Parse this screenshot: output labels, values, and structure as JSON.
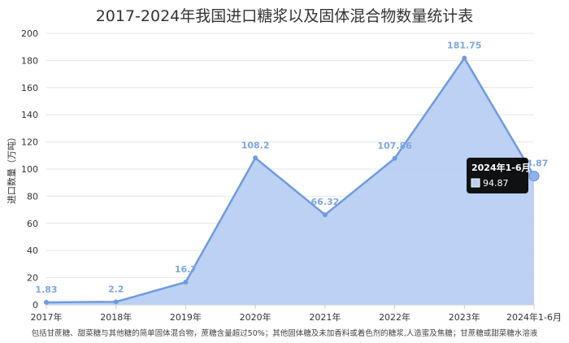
{
  "title": "2017-2024年我国进口糖浆以及固体混合物数量统计表",
  "footnote": "包括甘蔗糖、甜菜糖与其他糖的简单固体混合物，蔗糖含量超过50%；其他固体糖及未加香料或着色剂的糖浆,人造蜜及焦糖；甘蔗糖或甜菜糖水溶液",
  "colors": {
    "line": "#6f9be0",
    "area": "#b8cff2",
    "grid": "#e6e6e6",
    "label": "#7ea6e0"
  },
  "tooltip": {
    "title": "2024年1-6月",
    "value": "94.87"
  },
  "chart_data": {
    "type": "area",
    "categories": [
      "2017年",
      "2018年",
      "2019年",
      "2020年",
      "2021年",
      "2022年",
      "2023年",
      "2024年1-6月"
    ],
    "series": [
      {
        "values": [
          1.83,
          2.2,
          16.7,
          108.2,
          66.32,
          107.86,
          181.75,
          94.87
        ]
      }
    ],
    "data_labels": [
      "1.83",
      "2.2",
      "16.7",
      "108.2",
      "66.32",
      "107.86",
      "181.75",
      "94.87"
    ],
    "ylabel": "进口数量（万吨）",
    "ylim": [
      0,
      200
    ],
    "yticks": [
      0,
      20,
      40,
      60,
      80,
      100,
      120,
      140,
      160,
      180,
      200
    ],
    "grid": true
  }
}
